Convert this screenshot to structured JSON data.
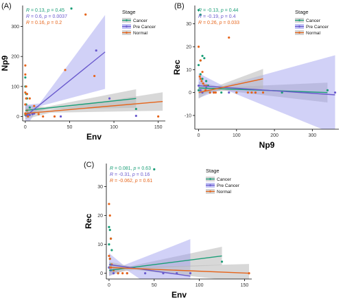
{
  "colors": {
    "cancer": "#1a9e77",
    "pre_cancer": "#6a5acd",
    "normal": "#e6641a",
    "pre_band": "#9999ee",
    "grey_band": "#b8b8b8",
    "panel_bg": "#ffffff",
    "axis": "#000000"
  },
  "chart_data": [
    {
      "type": "scatter",
      "panel_label": "(A)",
      "xlabel": "Env",
      "ylabel": "Np9",
      "xlim": [
        -3,
        158
      ],
      "ylim": [
        -15,
        370
      ],
      "xticks": [
        0,
        50,
        100,
        150
      ],
      "yticks": [
        0,
        100,
        200,
        300
      ],
      "grid": false,
      "legend": {
        "title": "Stage",
        "position": "top-right",
        "entries": [
          "Cancer",
          "Pre Cancer",
          "Normal"
        ]
      },
      "stats": [
        {
          "series": "Cancer",
          "r": "0.13",
          "p": "0.45"
        },
        {
          "series": "Pre Cancer",
          "r": "0.6",
          "p": "0.0037"
        },
        {
          "series": "Normal",
          "r": "0.16",
          "p": "0.2"
        }
      ],
      "series": [
        {
          "name": "Cancer",
          "points": [
            [
              0,
              130
            ],
            [
              0,
              100
            ],
            [
              1,
              75
            ],
            [
              2,
              60
            ],
            [
              1,
              40
            ],
            [
              3,
              10
            ],
            [
              0,
              5
            ],
            [
              52,
              360
            ],
            [
              125,
              25
            ],
            [
              5,
              30
            ]
          ],
          "fit": {
            "x": [
              0,
              125
            ],
            "y": [
              20,
              60
            ]
          }
        },
        {
          "name": "Pre Cancer",
          "points": [
            [
              0,
              10
            ],
            [
              1,
              5
            ],
            [
              2,
              3
            ],
            [
              3,
              2
            ],
            [
              5,
              5
            ],
            [
              8,
              8
            ],
            [
              10,
              10
            ],
            [
              80,
              220
            ],
            [
              95,
              60
            ],
            [
              40,
              0
            ],
            [
              125,
              2
            ]
          ],
          "fit": {
            "x": [
              0,
              90
            ],
            "y": [
              0,
              215
            ]
          }
        },
        {
          "name": "Normal",
          "points": [
            [
              0,
              170
            ],
            [
              0,
              140
            ],
            [
              1,
              100
            ],
            [
              0,
              80
            ],
            [
              2,
              75
            ],
            [
              1,
              60
            ],
            [
              0,
              40
            ],
            [
              2,
              20
            ],
            [
              0,
              10
            ],
            [
              1,
              5
            ],
            [
              3,
              0
            ],
            [
              33,
              0
            ],
            [
              20,
              0
            ],
            [
              45,
              155
            ],
            [
              68,
              340
            ],
            [
              78,
              135
            ],
            [
              150,
              0
            ],
            [
              5,
              60
            ],
            [
              10,
              35
            ],
            [
              15,
              8
            ]
          ],
          "fit": {
            "x": [
              0,
              155
            ],
            "y": [
              10,
              50
            ]
          }
        }
      ]
    },
    {
      "type": "scatter",
      "panel_label": "(B)",
      "xlabel": "Np9",
      "ylabel": "Rec",
      "xlim": [
        -10,
        370
      ],
      "ylim": [
        -16,
        38
      ],
      "xticks": [
        0,
        100,
        200,
        300
      ],
      "yticks": [
        -10,
        0,
        10,
        20,
        30
      ],
      "grid": false,
      "legend": {
        "title": "Stage",
        "position": "top-right",
        "entries": [
          "Cancer",
          "Pre Cancer",
          "Normal"
        ]
      },
      "stats": [
        {
          "series": "Cancer",
          "r": "-0.13",
          "p": "0.44"
        },
        {
          "series": "Pre Cancer",
          "r": "-0.19",
          "p": "0.4"
        },
        {
          "series": "Normal",
          "r": "0.26",
          "p": "0.033"
        }
      ],
      "series": [
        {
          "name": "Cancer",
          "points": [
            [
              0,
              36
            ],
            [
              5,
              34
            ],
            [
              10,
              16
            ],
            [
              15,
              15
            ],
            [
              5,
              14
            ],
            [
              0,
              12
            ],
            [
              5,
              8
            ],
            [
              10,
              6
            ],
            [
              20,
              5
            ],
            [
              25,
              3
            ],
            [
              0,
              1
            ],
            [
              30,
              0
            ],
            [
              60,
              0
            ],
            [
              100,
              0
            ],
            [
              220,
              0
            ],
            [
              340,
              1
            ]
          ],
          "fit": {
            "x": [
              0,
              340
            ],
            "y": [
              2,
              0
            ]
          }
        },
        {
          "name": "Pre Cancer",
          "points": [
            [
              0,
              3
            ],
            [
              5,
              1
            ],
            [
              10,
              0
            ],
            [
              20,
              2
            ],
            [
              40,
              0
            ],
            [
              80,
              0
            ],
            [
              150,
              0
            ],
            [
              360,
              0
            ]
          ],
          "fit": {
            "x": [
              0,
              360
            ],
            "y": [
              3,
              -1
            ]
          }
        },
        {
          "name": "Normal",
          "points": [
            [
              0,
              20
            ],
            [
              5,
              14
            ],
            [
              10,
              9
            ],
            [
              3,
              7
            ],
            [
              5,
              6
            ],
            [
              8,
              5
            ],
            [
              12,
              4
            ],
            [
              15,
              3
            ],
            [
              20,
              3
            ],
            [
              18,
              1
            ],
            [
              30,
              0
            ],
            [
              40,
              0
            ],
            [
              45,
              0
            ],
            [
              80,
              24
            ],
            [
              100,
              0
            ],
            [
              130,
              0
            ],
            [
              150,
              0
            ],
            [
              170,
              0
            ],
            [
              140,
              0
            ]
          ],
          "fit": {
            "x": [
              0,
              170
            ],
            "y": [
              0,
              6
            ]
          }
        }
      ]
    },
    {
      "type": "scatter",
      "panel_label": "(C)",
      "xlabel": "Env",
      "ylabel": "Rec",
      "xlim": [
        -3,
        158
      ],
      "ylim": [
        -2,
        38
      ],
      "xticks": [
        0,
        50,
        100,
        150
      ],
      "yticks": [
        0,
        10,
        20,
        30
      ],
      "grid": false,
      "legend": {
        "title": "Stage",
        "position": "top-right",
        "entries": [
          "Cancer",
          "Pre Cancer",
          "Normal"
        ]
      },
      "stats": [
        {
          "series": "Cancer",
          "r": "0.081",
          "p": "0.63"
        },
        {
          "series": "Pre Cancer",
          "r": "-0.31",
          "p": "0.16"
        },
        {
          "series": "Normal",
          "r": "-0.062",
          "p": "0.61"
        }
      ],
      "series": [
        {
          "name": "Cancer",
          "points": [
            [
              0,
              16
            ],
            [
              1,
              15
            ],
            [
              2,
              12
            ],
            [
              0,
              10
            ],
            [
              3,
              8
            ],
            [
              1,
              5
            ],
            [
              2,
              3
            ],
            [
              0,
              2
            ],
            [
              5,
              1
            ],
            [
              50,
              36
            ],
            [
              125,
              4
            ]
          ],
          "fit": {
            "x": [
              0,
              125
            ],
            "y": [
              1,
              6
            ]
          }
        },
        {
          "name": "Pre Cancer",
          "points": [
            [
              0,
              2
            ],
            [
              2,
              1
            ],
            [
              5,
              0
            ],
            [
              10,
              0
            ],
            [
              20,
              0
            ],
            [
              40,
              0
            ],
            [
              60,
              0
            ],
            [
              75,
              0
            ],
            [
              90,
              0
            ]
          ],
          "fit": {
            "x": [
              0,
              90
            ],
            "y": [
              3,
              -1
            ]
          }
        },
        {
          "name": "Normal",
          "points": [
            [
              0,
              24
            ],
            [
              1,
              20
            ],
            [
              2,
              12
            ],
            [
              0,
              6
            ],
            [
              1,
              5
            ],
            [
              3,
              3
            ],
            [
              2,
              2
            ],
            [
              5,
              1
            ],
            [
              10,
              0
            ],
            [
              15,
              0
            ],
            [
              20,
              0
            ],
            [
              155,
              0
            ]
          ],
          "fit": {
            "x": [
              0,
              155
            ],
            "y": [
              2,
              0
            ]
          }
        }
      ]
    }
  ]
}
